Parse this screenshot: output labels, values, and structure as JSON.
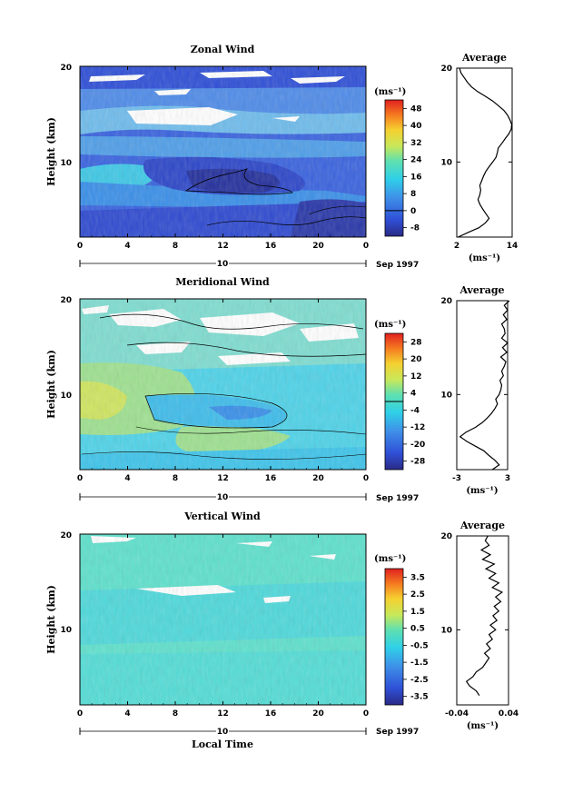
{
  "chart_data": [
    {
      "type": "heatmap",
      "title": "Zonal Wind",
      "ylabel": "Height (km)",
      "xticks": [
        "0",
        "4",
        "8",
        "12",
        "16",
        "20",
        "0"
      ],
      "yticks": [
        "20",
        "10"
      ],
      "xlim": [
        0,
        24
      ],
      "ylim": [
        2,
        20
      ],
      "date_label": "10",
      "month_label": "Sep 1997",
      "colorbar": {
        "unit": "(ms⁻¹)",
        "ticks": [
          "48",
          "40",
          "32",
          "24",
          "16",
          "8",
          "0",
          "-8"
        ],
        "min": -12,
        "max": 52,
        "zero_line": 0
      },
      "profile": {
        "title": "Average",
        "xticks": [
          "2",
          "14"
        ],
        "xlim": [
          2,
          14
        ],
        "yticks": [
          "20",
          "10"
        ],
        "xlabel": "(ms⁻¹)",
        "heights": [
          2,
          2.5,
          3,
          3.5,
          4,
          4.5,
          5,
          5.5,
          6,
          6.5,
          7,
          7.5,
          8,
          8.5,
          9,
          9.5,
          10,
          10.5,
          11,
          11.5,
          12,
          12.5,
          13,
          13.5,
          14,
          14.5,
          15,
          15.5,
          16,
          16.5,
          17,
          17.5,
          18,
          18.5,
          19,
          19.5,
          20
        ],
        "values": [
          2.3,
          4.5,
          6.8,
          8.2,
          9.0,
          8.3,
          7.6,
          7.0,
          6.6,
          7.0,
          7.2,
          7.0,
          7.4,
          7.8,
          8.3,
          9.0,
          9.8,
          10.5,
          10.8,
          11.0,
          11.8,
          12.5,
          13.3,
          13.8,
          13.9,
          13.5,
          13.0,
          12.2,
          11.0,
          9.8,
          8.2,
          6.5,
          5.2,
          4.3,
          3.6,
          2.9,
          2.6
        ]
      }
    },
    {
      "type": "heatmap",
      "title": "Meridional Wind",
      "ylabel": "Height (km)",
      "xticks": [
        "0",
        "4",
        "8",
        "12",
        "16",
        "20",
        "0"
      ],
      "yticks": [
        "20",
        "10"
      ],
      "xlim": [
        0,
        24
      ],
      "ylim": [
        2,
        20
      ],
      "date_label": "10",
      "month_label": "Sep 1997",
      "colorbar": {
        "unit": "(ms⁻¹)",
        "ticks": [
          "28",
          "20",
          "12",
          "4",
          "-4",
          "-12",
          "-20",
          "-28"
        ],
        "min": -32,
        "max": 32,
        "zero_line": 0
      },
      "profile": {
        "title": "Average",
        "xticks": [
          "-3",
          "3"
        ],
        "xlim": [
          -3,
          3
        ],
        "yticks": [
          "20",
          "10"
        ],
        "xlabel": "(ms⁻¹)",
        "heights": [
          2,
          2.5,
          3,
          3.5,
          4,
          4.5,
          5,
          5.5,
          6,
          6.5,
          7,
          7.5,
          8,
          8.5,
          9,
          9.5,
          10,
          10.5,
          11,
          11.5,
          12,
          12.5,
          13,
          13.5,
          14,
          14.5,
          15,
          15.5,
          16,
          16.5,
          17,
          17.5,
          18,
          18.5,
          19,
          19.5,
          20
        ],
        "values": [
          1.2,
          2.0,
          1.5,
          0.8,
          0.2,
          -0.8,
          -1.8,
          -2.6,
          -1.9,
          -0.8,
          0.0,
          0.6,
          1.1,
          1.5,
          1.8,
          1.6,
          2.0,
          2.2,
          2.3,
          2.1,
          2.5,
          2.3,
          2.6,
          2.8,
          2.2,
          2.9,
          2.4,
          3.0,
          2.3,
          2.7,
          2.6,
          2.3,
          2.9,
          2.5,
          3.0,
          2.6,
          3.2
        ]
      }
    },
    {
      "type": "heatmap",
      "title": "Vertical Wind",
      "ylabel": "Height (km)",
      "xlabel": "Local Time",
      "xticks": [
        "0",
        "4",
        "8",
        "12",
        "16",
        "20",
        "0"
      ],
      "yticks": [
        "20",
        "10"
      ],
      "xlim": [
        0,
        24
      ],
      "ylim": [
        2,
        20
      ],
      "date_label": "10",
      "month_label": "Sep 1997",
      "colorbar": {
        "unit": "(ms⁻¹)",
        "ticks": [
          "3.5",
          "2.5",
          "1.5",
          "0.5",
          "-0.5",
          "-1.5",
          "-2.5",
          "-3.5"
        ],
        "min": -4,
        "max": 4,
        "zero_line": null
      },
      "profile": {
        "title": "Average",
        "xticks": [
          "-0.04",
          "0.04"
        ],
        "xlim": [
          -0.04,
          0.04
        ],
        "yticks": [
          "20",
          "10"
        ],
        "xlabel": "(ms⁻¹)",
        "heights": [
          3,
          3.5,
          4,
          4.5,
          5,
          5.5,
          6,
          6.5,
          7,
          7.5,
          8,
          8.5,
          9,
          9.5,
          10,
          10.5,
          11,
          11.5,
          12,
          12.5,
          13,
          13.5,
          14,
          14.5,
          15,
          15.5,
          16,
          16.5,
          17,
          17.5,
          18,
          18.5,
          19,
          19.5,
          20
        ],
        "values": [
          -0.005,
          -0.01,
          -0.02,
          -0.025,
          -0.015,
          -0.01,
          0.0,
          0.005,
          0.01,
          0.003,
          0.012,
          0.006,
          0.015,
          0.01,
          0.02,
          0.012,
          0.022,
          0.016,
          0.025,
          0.018,
          0.028,
          0.02,
          0.03,
          0.015,
          0.025,
          0.01,
          0.02,
          0.005,
          0.018,
          0.0,
          0.012,
          -0.002,
          0.01,
          0.004,
          0.008
        ]
      }
    }
  ]
}
